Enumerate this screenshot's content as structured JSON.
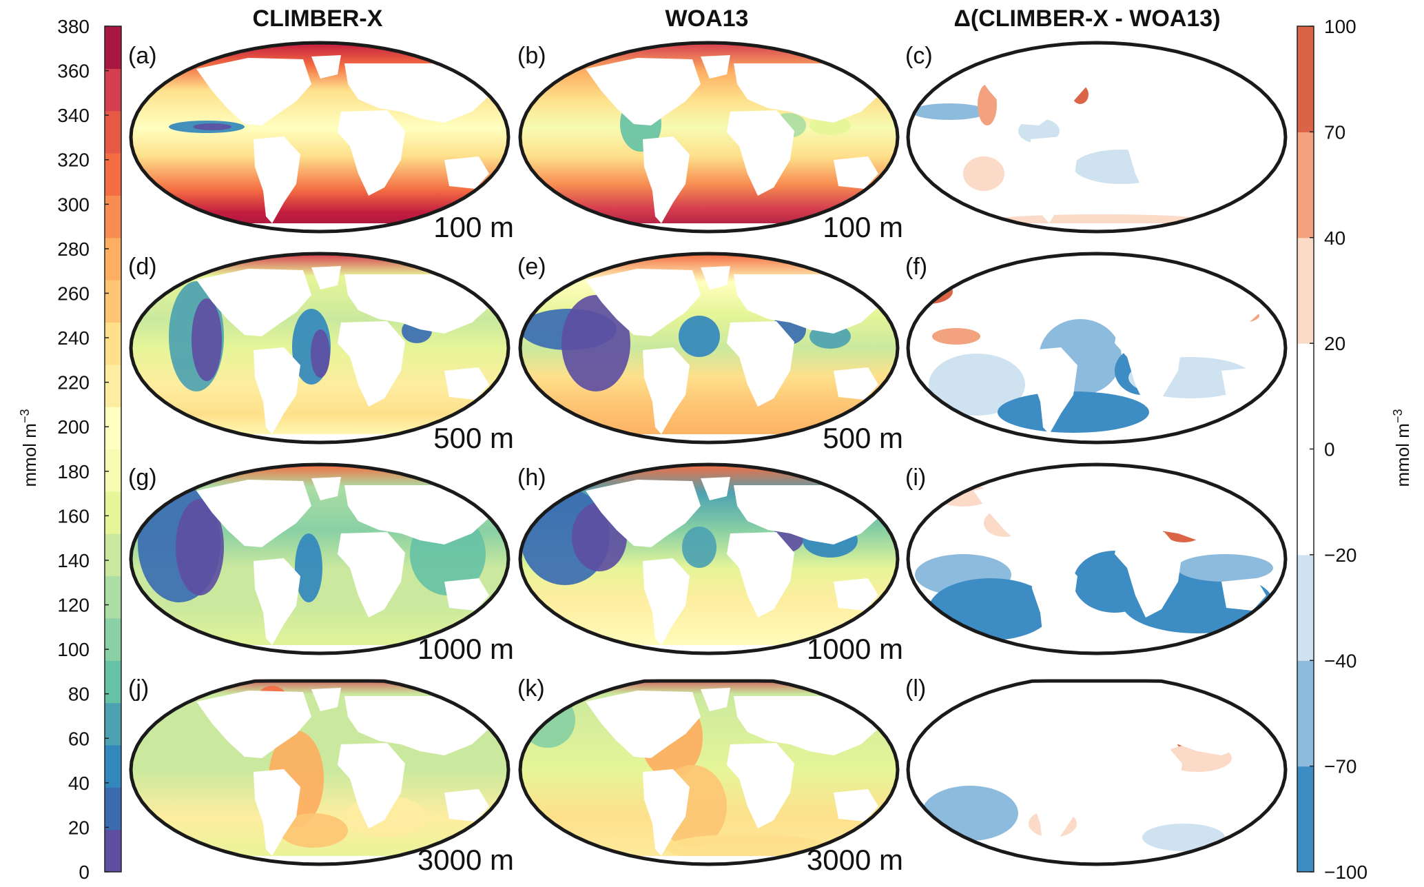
{
  "column_titles": [
    "CLIMBER-X",
    "WOA13",
    "Δ(CLIMBER-X - WOA13)"
  ],
  "colorbar_left": {
    "label": "mmol m",
    "label_sup": "−3",
    "ticks": [
      "0",
      "20",
      "40",
      "60",
      "80",
      "100",
      "120",
      "140",
      "160",
      "180",
      "200",
      "220",
      "240",
      "260",
      "280",
      "300",
      "320",
      "340",
      "360",
      "380"
    ],
    "colors": [
      "#5E4FA2",
      "#3B6CB2",
      "#3288BD",
      "#4DA2B1",
      "#66C2A5",
      "#89D0A4",
      "#ABDDA4",
      "#CAE99E",
      "#E6F598",
      "#F6FBB2",
      "#FFFFBF",
      "#FEEDA0",
      "#FEE08B",
      "#FDC574",
      "#FDAE61",
      "#F88D52",
      "#F46D43",
      "#E65A45",
      "#D53E4F",
      "#A8173F"
    ]
  },
  "colorbar_right": {
    "label": "mmol m",
    "label_sup": "−3",
    "ticks": [
      "−100",
      "−70",
      "−40",
      "−20",
      "0",
      "20",
      "40",
      "70",
      "100"
    ],
    "colors": [
      "#3E8CC4",
      "#8DBBDD",
      "#CFE2F0",
      "#FFFFFF",
      "#FFFFFF",
      "#FBDAC7",
      "#F2A27E",
      "#DB6446"
    ]
  },
  "chart_data": {
    "type": "heatmap",
    "variable_unit": "mmol m-3",
    "columns": [
      "CLIMBER-X",
      "WOA13",
      "Δ(CLIMBER-X - WOA13)"
    ],
    "depths": [
      "100 m",
      "500 m",
      "1000 m",
      "3000 m"
    ],
    "abs_range": [
      0,
      380
    ],
    "diff_range": [
      -100,
      100
    ],
    "panels": [
      {
        "label": "(a)",
        "column": "CLIMBER-X",
        "depth": "100 m"
      },
      {
        "label": "(b)",
        "column": "WOA13",
        "depth": "100 m"
      },
      {
        "label": "(c)",
        "column": "Δ(CLIMBER-X - WOA13)",
        "depth": "100 m"
      },
      {
        "label": "(d)",
        "column": "CLIMBER-X",
        "depth": "500 m"
      },
      {
        "label": "(e)",
        "column": "WOA13",
        "depth": "500 m"
      },
      {
        "label": "(f)",
        "column": "Δ(CLIMBER-X - WOA13)",
        "depth": "500 m"
      },
      {
        "label": "(g)",
        "column": "CLIMBER-X",
        "depth": "1000 m"
      },
      {
        "label": "(h)",
        "column": "WOA13",
        "depth": "1000 m"
      },
      {
        "label": "(i)",
        "column": "Δ(CLIMBER-X - WOA13)",
        "depth": "1000 m"
      },
      {
        "label": "(j)",
        "column": "CLIMBER-X",
        "depth": "3000 m"
      },
      {
        "label": "(k)",
        "column": "WOA13",
        "depth": "3000 m"
      },
      {
        "label": "(l)",
        "column": "Δ(CLIMBER-X - WOA13)",
        "depth": "3000 m"
      }
    ],
    "approx_values": {
      "100 m": {
        "climber_tropics": 200,
        "climber_high_lat": 340,
        "climber_east_tropical_pacific": 60,
        "woa_tropics": 190,
        "woa_high_lat": 330
      },
      "500 m": {
        "climber_omz_pacific": 10,
        "climber_arabian_sea": 20,
        "climber_southern": 220,
        "woa_omz_pacific": 10,
        "woa_southern": 250
      },
      "1000 m": {
        "climber_pacific": 20,
        "climber_indian": 110,
        "climber_southern": 140,
        "woa_pacific": 40,
        "woa_southern": 220
      },
      "3000 m": {
        "climber_atlantic": 270,
        "climber_pacific": 150,
        "climber_indian": 190,
        "woa_atlantic": 250,
        "woa_pacific": 160
      }
    }
  }
}
